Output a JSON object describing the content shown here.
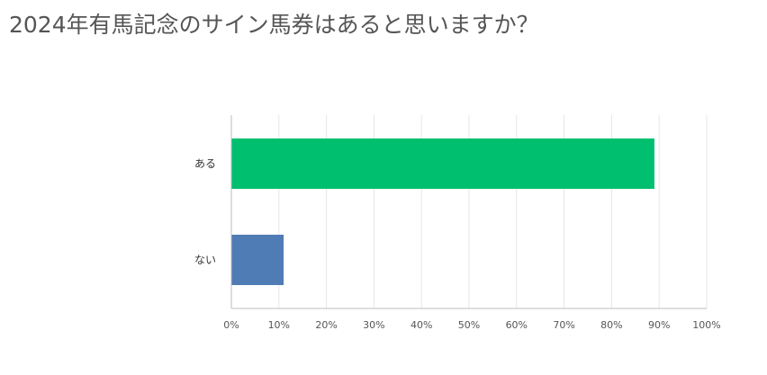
{
  "title": "2024年有馬記念のサイン馬券はあると思いますか？",
  "chart_data": {
    "type": "bar",
    "orientation": "horizontal",
    "categories": [
      "ある",
      "ない"
    ],
    "values": [
      89,
      11
    ],
    "unit": "%",
    "colors": [
      "#00bf6f",
      "#507cb6"
    ],
    "xlim": [
      0,
      100
    ],
    "x_ticks": [
      "0%",
      "10%",
      "20%",
      "30%",
      "40%",
      "50%",
      "60%",
      "70%",
      "80%",
      "90%",
      "100%"
    ],
    "grid": true,
    "legend": "none"
  }
}
